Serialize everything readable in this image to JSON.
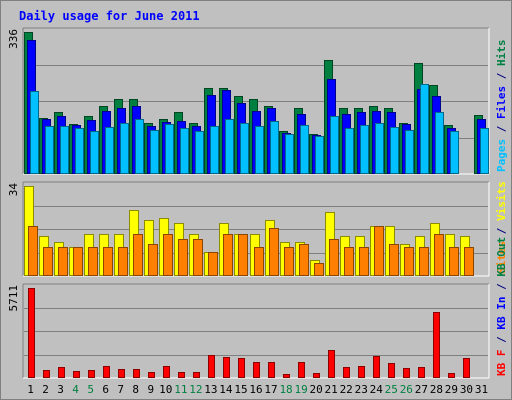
{
  "chart_data": {
    "type": "bar",
    "title": "Daily usage for June 2011",
    "categories": [
      "1",
      "2",
      "3",
      "4",
      "5",
      "6",
      "7",
      "8",
      "9",
      "10",
      "11",
      "12",
      "13",
      "14",
      "15",
      "16",
      "17",
      "18",
      "19",
      "20",
      "21",
      "22",
      "23",
      "24",
      "25",
      "26",
      "27",
      "28",
      "29",
      "30",
      "31"
    ],
    "weekend_days": [
      "4",
      "5",
      "11",
      "12",
      "18",
      "19",
      "25",
      "26"
    ],
    "panels": [
      {
        "name": "hits-files-pages",
        "ymax": 336,
        "ymax_label": "336",
        "right_label": [
          {
            "text": "Pages",
            "color": "#00c0ff"
          },
          {
            "text": " / ",
            "color": "#000080"
          },
          {
            "text": "Files",
            "color": "#0000ff"
          },
          {
            "text": " / ",
            "color": "#000080"
          },
          {
            "text": "Hits",
            "color": "#008040"
          }
        ],
        "series": [
          {
            "name": "Hits",
            "color": "#008040",
            "values": [
              336,
              133,
              146,
              118,
              138,
              160,
              178,
              178,
              120,
              129,
              146,
              120,
              204,
              204,
              184,
              178,
              160,
              101,
              157,
              95,
              269,
              157,
              157,
              160,
              157,
              120,
              263,
              210,
              115,
              0,
              140
            ]
          },
          {
            "name": "Files",
            "color": "#0000ff",
            "values": [
              318,
              129,
              138,
              116,
              127,
              150,
              157,
              161,
              113,
              124,
              126,
              113,
              187,
              199,
              168,
              148,
              155,
              98,
              142,
              92,
              225,
              141,
              147,
              150,
              146,
              118,
              202,
              184,
              110,
              0,
              131
            ]
          },
          {
            "name": "Pages",
            "color": "#00c0ff",
            "values": [
              196,
              113,
              114,
              109,
              101,
              112,
              120,
              129,
              104,
              118,
              109,
              102,
              114,
              131,
              120,
              114,
              125,
              94,
              116,
              90,
              137,
              110,
              117,
              121,
              112,
              103,
              214,
              147,
              101,
              0,
              109
            ]
          }
        ]
      },
      {
        "name": "visits-sites",
        "ymax": 34,
        "ymax_label": "34",
        "right_label": [
          {
            "text": "Sites",
            "color": "#ff8000"
          },
          {
            "text": " / ",
            "color": "#000080"
          },
          {
            "text": "Visits",
            "color": "#ffff00"
          }
        ],
        "series": [
          {
            "name": "Visits",
            "color": "#ffff00",
            "values": [
              34,
              15,
              13,
              11,
              16,
              16,
              16,
              25,
              21,
              22,
              20,
              16,
              9,
              20,
              16,
              16,
              21,
              13,
              13,
              6,
              24,
              15,
              15,
              19,
              19,
              12,
              15,
              20,
              16,
              15,
              0
            ]
          },
          {
            "name": "Sites",
            "color": "#ff8000",
            "values": [
              19,
              11,
              11,
              11,
              11,
              11,
              11,
              16,
              12,
              16,
              14,
              14,
              9,
              16,
              16,
              11,
              18,
              11,
              12,
              5,
              14,
              11,
              11,
              19,
              12,
              11,
              11,
              16,
              11,
              11,
              0
            ]
          }
        ]
      },
      {
        "name": "kbf-kbin-kbout",
        "ymax": 5711,
        "ymax_label": "5711",
        "right_label": [
          {
            "text": "KB F",
            "color": "#ff0000"
          },
          {
            "text": " / ",
            "color": "#000080"
          },
          {
            "text": "KB In",
            "color": "#0000ff"
          },
          {
            "text": " / ",
            "color": "#000080"
          },
          {
            "text": "KB Out",
            "color": "#008040"
          }
        ],
        "series": [
          {
            "name": "KB F",
            "color": "#ff0000",
            "values": [
              5711,
              496,
              694,
              456,
              539,
              744,
              595,
              595,
              397,
              744,
              397,
              397,
              1488,
              1339,
              1290,
              1042,
              1042,
              248,
              1042,
              298,
              1787,
              694,
              744,
              1389,
              943,
              645,
              694,
              4216,
              347,
              1290,
              0
            ]
          }
        ]
      }
    ]
  }
}
